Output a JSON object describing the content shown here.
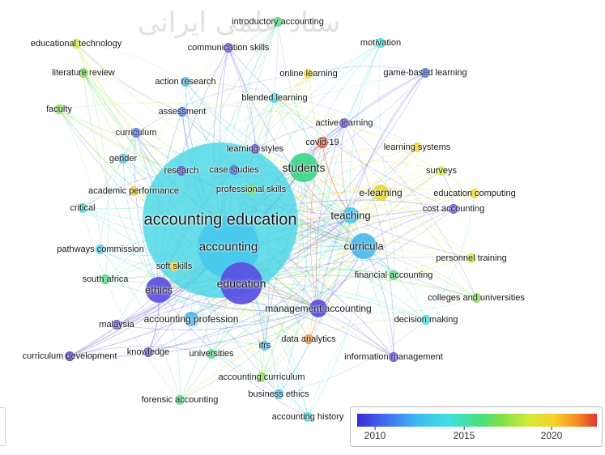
{
  "watermark_text": "ستاد علمی ایرانی",
  "legend": {
    "ticks": [
      "2010",
      "2015",
      "2020"
    ],
    "colors": [
      "#3a2bd6",
      "#3f6ef2",
      "#40b8f0",
      "#3fe0e0",
      "#49e07a",
      "#7fe04a",
      "#d6e838",
      "#f6d22a",
      "#f58a26",
      "#e2342a"
    ]
  },
  "nodes": [
    {
      "id": "accounting_education",
      "label": "accounting education",
      "color": "#46d6e6",
      "weight": 10,
      "year": 2014.5
    },
    {
      "id": "accounting",
      "label": "accounting",
      "color": "#46c8ee",
      "weight": 7,
      "year": 2014
    },
    {
      "id": "education",
      "label": "education",
      "color": "#5a4ee0",
      "weight": 5,
      "year": 2011
    },
    {
      "id": "students",
      "label": "students",
      "color": "#3ed58a",
      "weight": 5,
      "year": 2016
    },
    {
      "id": "e_learning",
      "label": "e-learning",
      "color": "#e4d82e",
      "weight": 4,
      "year": 2019
    },
    {
      "id": "teaching",
      "label": "teaching",
      "color": "#48c8ee",
      "weight": 4,
      "year": 2014
    },
    {
      "id": "curricula",
      "label": "curricula",
      "color": "#49b8ec",
      "weight": 4,
      "year": 2013.5
    },
    {
      "id": "ethics",
      "label": "ethics",
      "color": "#5a4ee0",
      "weight": 4,
      "year": 2011
    },
    {
      "id": "management_accounting",
      "label": "management accounting",
      "color": "#5a4ee0",
      "weight": 3,
      "year": 2011
    },
    {
      "id": "accounting_profession",
      "label": "accounting profession",
      "color": "#49b8ec",
      "weight": 3,
      "year": 2013
    },
    {
      "id": "introductory_accounting",
      "label": "introductory accounting",
      "color": "#49e07a",
      "weight": 2,
      "year": 2016
    },
    {
      "id": "educational_technology",
      "label": "educational technology",
      "color": "#d6e838",
      "weight": 2,
      "year": 2018
    },
    {
      "id": "communication_skills",
      "label": "communication skills",
      "color": "#5a4ee0",
      "weight": 2,
      "year": 2011
    },
    {
      "id": "motivation",
      "label": "motivation",
      "color": "#3fe0e0",
      "weight": 2,
      "year": 2015
    },
    {
      "id": "literature_review",
      "label": "literature review",
      "color": "#7fe04a",
      "weight": 2,
      "year": 2017
    },
    {
      "id": "action_research",
      "label": "action research",
      "color": "#49b8ec",
      "weight": 2,
      "year": 2013
    },
    {
      "id": "online_learning",
      "label": "online learning",
      "color": "#f6d22a",
      "weight": 2,
      "year": 2020
    },
    {
      "id": "game_based_learning",
      "label": "game-based learning",
      "color": "#3f6ef2",
      "weight": 2,
      "year": 2012
    },
    {
      "id": "blended_learning",
      "label": "blended learning",
      "color": "#3fe0e0",
      "weight": 2,
      "year": 2015
    },
    {
      "id": "faculty",
      "label": "faculty",
      "color": "#7fe04a",
      "weight": 2,
      "year": 2017
    },
    {
      "id": "assessment",
      "label": "assessment",
      "color": "#3f6ef2",
      "weight": 2,
      "year": 2012
    },
    {
      "id": "active_learning",
      "label": "active learning",
      "color": "#5a4ee0",
      "weight": 2,
      "year": 2011
    },
    {
      "id": "curriculum",
      "label": "curriculum",
      "color": "#3f6ef2",
      "weight": 2,
      "year": 2012
    },
    {
      "id": "covid_19",
      "label": "covid-19",
      "color": "#e2542a",
      "weight": 2,
      "year": 2021
    },
    {
      "id": "learning_styles",
      "label": "learning styles",
      "color": "#5a4ee0",
      "weight": 2,
      "year": 2011
    },
    {
      "id": "learning_systems",
      "label": "learning systems",
      "color": "#f6d22a",
      "weight": 2,
      "year": 2020
    },
    {
      "id": "gender",
      "label": "gender",
      "color": "#49b8ec",
      "weight": 2,
      "year": 2013
    },
    {
      "id": "research",
      "label": "research",
      "color": "#5a4ee0",
      "weight": 2,
      "year": 2011
    },
    {
      "id": "case_studies",
      "label": "case studies",
      "color": "#3f6ef2",
      "weight": 2,
      "year": 2012
    },
    {
      "id": "surveys",
      "label": "surveys",
      "color": "#d6e838",
      "weight": 2,
      "year": 2018
    },
    {
      "id": "professional_skills",
      "label": "professional skills",
      "color": "#7fe04a",
      "weight": 2,
      "year": 2017
    },
    {
      "id": "academic_performance",
      "label": "academic performance",
      "color": "#f6d22a",
      "weight": 2,
      "year": 2019
    },
    {
      "id": "education_computing",
      "label": "education computing",
      "color": "#f6d22a",
      "weight": 2,
      "year": 2020
    },
    {
      "id": "critical",
      "label": "critical",
      "color": "#3fe0e0",
      "weight": 2,
      "year": 2015
    },
    {
      "id": "cost_accounting",
      "label": "cost accounting",
      "color": "#5a4ee0",
      "weight": 2,
      "year": 2011
    },
    {
      "id": "pathways_commission",
      "label": "pathways commission",
      "color": "#46c8ee",
      "weight": 2,
      "year": 2014
    },
    {
      "id": "soft_skills",
      "label": "soft skills",
      "color": "#f6d22a",
      "weight": 2,
      "year": 2019
    },
    {
      "id": "personnel_training",
      "label": "personnel training",
      "color": "#d6e838",
      "weight": 2,
      "year": 2018
    },
    {
      "id": "financial_accounting",
      "label": "financial accounting",
      "color": "#49e07a",
      "weight": 2,
      "year": 2016
    },
    {
      "id": "south_africa",
      "label": "south africa",
      "color": "#49e07a",
      "weight": 2,
      "year": 2016
    },
    {
      "id": "colleges_and_universities",
      "label": "colleges and universities",
      "color": "#7fe04a",
      "weight": 2,
      "year": 2017
    },
    {
      "id": "malaysia",
      "label": "malaysia",
      "color": "#5a4ee0",
      "weight": 2,
      "year": 2011
    },
    {
      "id": "decision_making",
      "label": "decision making",
      "color": "#3fe0e0",
      "weight": 2,
      "year": 2015
    },
    {
      "id": "data_analytics",
      "label": "data analytics",
      "color": "#f58a26",
      "weight": 2,
      "year": 2021
    },
    {
      "id": "ifrs",
      "label": "ifrs",
      "color": "#49b8ec",
      "weight": 2,
      "year": 2013
    },
    {
      "id": "curriculum_development",
      "label": "curriculum development",
      "color": "#3a2bd6",
      "weight": 2,
      "year": 2010
    },
    {
      "id": "knowledge",
      "label": "knowledge",
      "color": "#5a4ee0",
      "weight": 2,
      "year": 2011
    },
    {
      "id": "universities",
      "label": "universities",
      "color": "#49e07a",
      "weight": 2,
      "year": 2016
    },
    {
      "id": "information_management",
      "label": "information management",
      "color": "#5a4ee0",
      "weight": 2,
      "year": 2011
    },
    {
      "id": "accounting_curriculum",
      "label": "accounting curriculum",
      "color": "#7fe04a",
      "weight": 2,
      "year": 2017
    },
    {
      "id": "forensic_accounting",
      "label": "forensic accounting",
      "color": "#49e07a",
      "weight": 2,
      "year": 2016
    },
    {
      "id": "business_ethics",
      "label": "business ethics",
      "color": "#49b8ec",
      "weight": 2,
      "year": 2013
    },
    {
      "id": "accounting_history",
      "label": "accounting history",
      "color": "#3fe0e0",
      "weight": 2,
      "year": 2015
    }
  ]
}
